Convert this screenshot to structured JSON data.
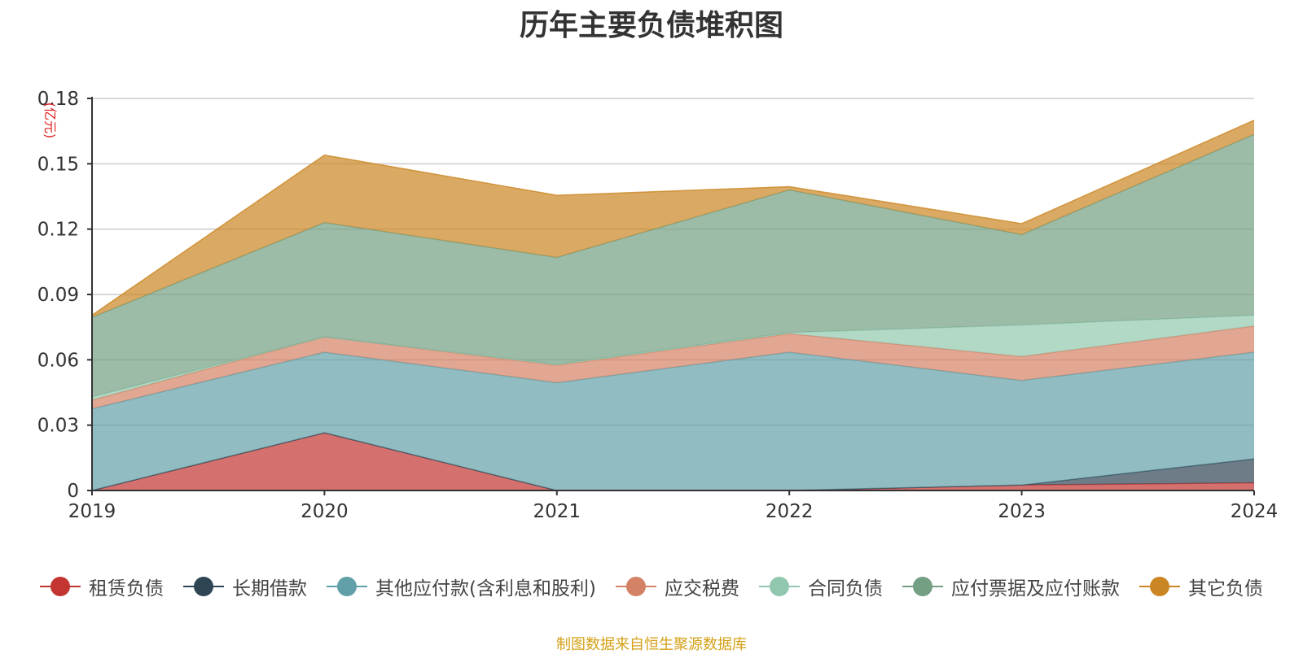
{
  "chart_data": {
    "type": "area",
    "stacked": true,
    "title": "历年主要负债堆积图",
    "ylabel": "(亿元)",
    "x": [
      "2019",
      "2020",
      "2021",
      "2022",
      "2023",
      "2024"
    ],
    "ylim": [
      0,
      0.18
    ],
    "yticks": [
      "0",
      "0.03",
      "0.06",
      "0.09",
      "0.12",
      "0.15",
      "0.18"
    ],
    "grid": true,
    "legend_position": "bottom",
    "series": [
      {
        "name": "租赁负债",
        "color": "#c23531",
        "values": [
          0.0,
          0.0265,
          0.0,
          0.0,
          0.0025,
          0.0035
        ]
      },
      {
        "name": "长期借款",
        "color": "#2f4554",
        "values": [
          0.0,
          0.0,
          0.0,
          0.0,
          0.0,
          0.011
        ]
      },
      {
        "name": "其他应付款(含利息和股利)",
        "color": "#61a0a8",
        "values": [
          0.0375,
          0.037,
          0.0495,
          0.0635,
          0.048,
          0.049
        ]
      },
      {
        "name": "应交税费",
        "color": "#d48265",
        "values": [
          0.004,
          0.007,
          0.008,
          0.0085,
          0.011,
          0.012
        ]
      },
      {
        "name": "合同负债",
        "color": "#91c7ae",
        "values": [
          0.0015,
          0.0,
          0.0005,
          0.0005,
          0.0145,
          0.005
        ]
      },
      {
        "name": "应付票据及应付账款",
        "color": "#749f83",
        "values": [
          0.0365,
          0.0525,
          0.049,
          0.0655,
          0.0415,
          0.083
        ]
      },
      {
        "name": "其它负债",
        "color": "#ca8622",
        "values": [
          0.001,
          0.031,
          0.0285,
          0.0015,
          0.005,
          0.0065
        ]
      }
    ]
  },
  "source_note": "制图数据来自恒生聚源数据库"
}
